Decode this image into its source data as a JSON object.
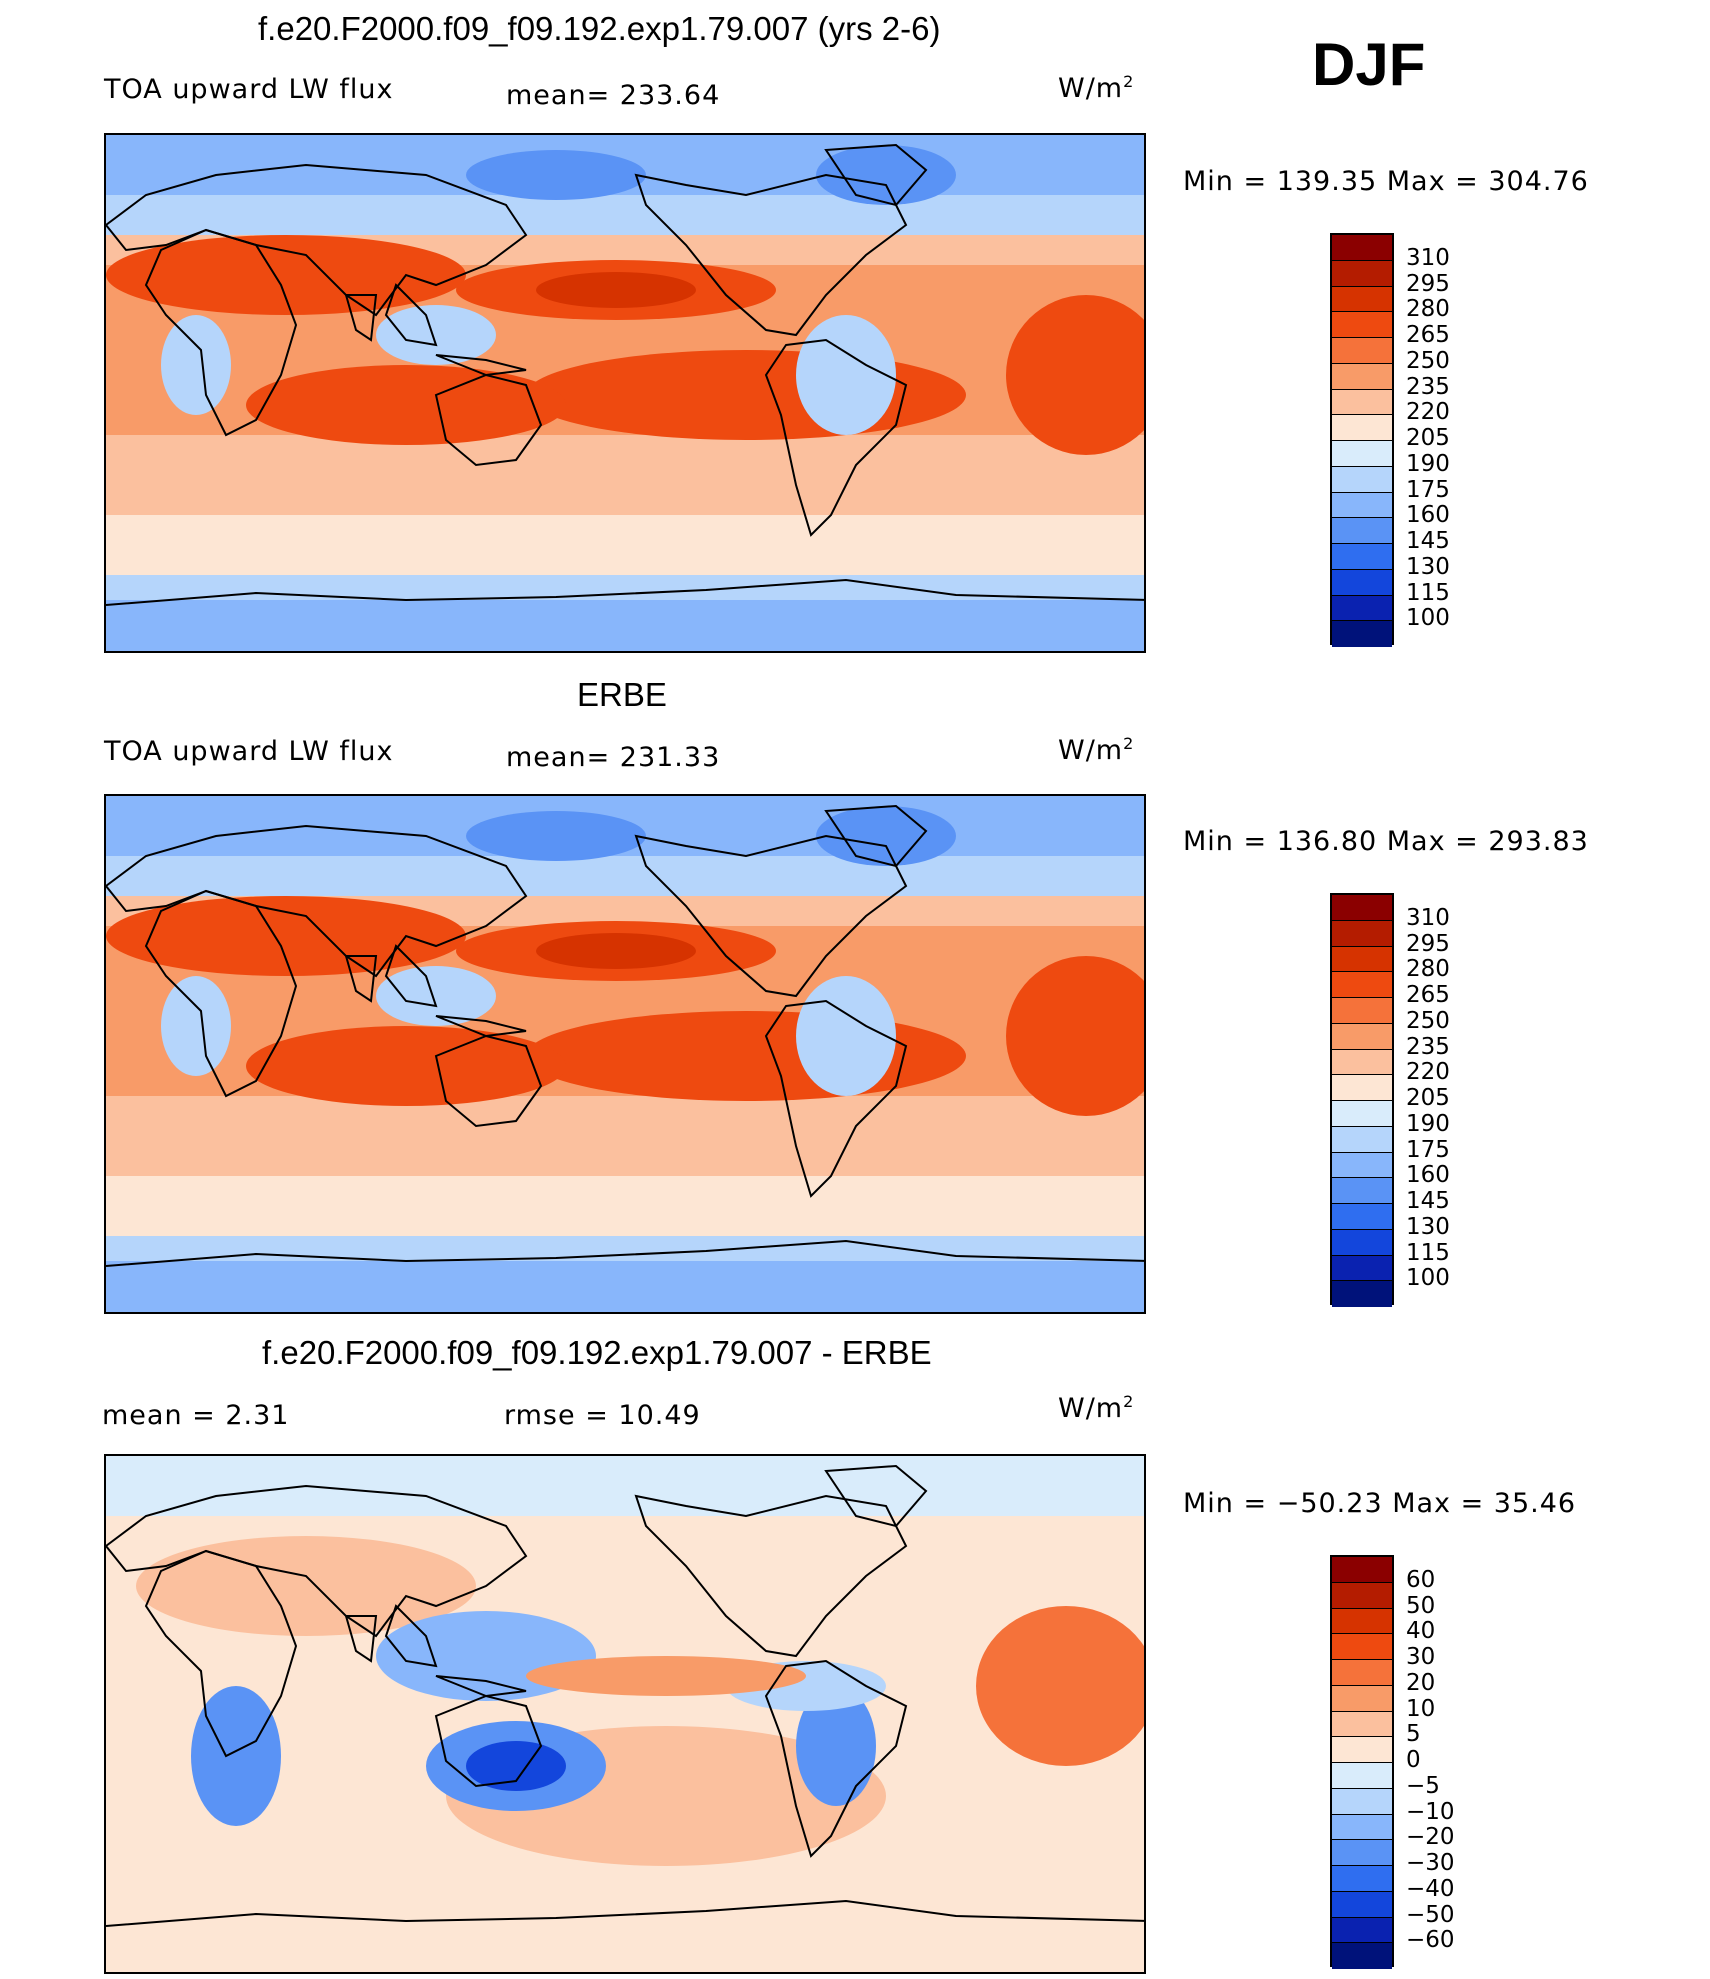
{
  "season": "DJF",
  "panels": [
    {
      "id": "model",
      "title": "f.e20.F2000.f09_f09.192.exp1.79.007 (yrs 2-6)",
      "left_label": "TOA upward LW flux",
      "stat": "mean=  233.64",
      "units_base": "W/m",
      "units_exp": "2",
      "minmax": "Min  =  139.35  Max  =  304.76",
      "levels": [
        "310",
        "295",
        "280",
        "265",
        "250",
        "235",
        "220",
        "205",
        "190",
        "175",
        "160",
        "145",
        "130",
        "115",
        "100"
      ],
      "colors": [
        "#8b0000",
        "#b41c00",
        "#d63300",
        "#ee4a10",
        "#f5723a",
        "#f89b68",
        "#fbc09e",
        "#fde6d4",
        "#d9ecfb",
        "#b5d5fb",
        "#88b6fb",
        "#5a93f5",
        "#2f6ef0",
        "#1346dc",
        "#0a22b0",
        "#00127a"
      ]
    },
    {
      "id": "obs",
      "title": "ERBE",
      "left_label": "TOA upward LW flux",
      "stat": "mean=  231.33",
      "units_base": "W/m",
      "units_exp": "2",
      "minmax": "Min  =  136.80  Max  =  293.83",
      "levels": [
        "310",
        "295",
        "280",
        "265",
        "250",
        "235",
        "220",
        "205",
        "190",
        "175",
        "160",
        "145",
        "130",
        "115",
        "100"
      ],
      "colors": [
        "#8b0000",
        "#b41c00",
        "#d63300",
        "#ee4a10",
        "#f5723a",
        "#f89b68",
        "#fbc09e",
        "#fde6d4",
        "#d9ecfb",
        "#b5d5fb",
        "#88b6fb",
        "#5a93f5",
        "#2f6ef0",
        "#1346dc",
        "#0a22b0",
        "#00127a"
      ]
    },
    {
      "id": "diff",
      "title": "f.e20.F2000.f09_f09.192.exp1.79.007 - ERBE",
      "left_label": "mean  =     2.31",
      "stat": "rmse  =    10.49",
      "units_base": "W/m",
      "units_exp": "2",
      "minmax": "Min  = −50.23  Max  =    35.46",
      "levels": [
        "60",
        "50",
        "40",
        "30",
        "20",
        "10",
        "5",
        "0",
        "−5",
        "−10",
        "−20",
        "−30",
        "−40",
        "−50",
        "−60"
      ],
      "colors": [
        "#8b0000",
        "#b41c00",
        "#d63300",
        "#ee4a10",
        "#f5723a",
        "#f89b68",
        "#fbc09e",
        "#fde6d4",
        "#d9ecfb",
        "#b5d5fb",
        "#88b6fb",
        "#5a93f5",
        "#2f6ef0",
        "#1346dc",
        "#0a22b0",
        "#00127a"
      ]
    }
  ]
}
